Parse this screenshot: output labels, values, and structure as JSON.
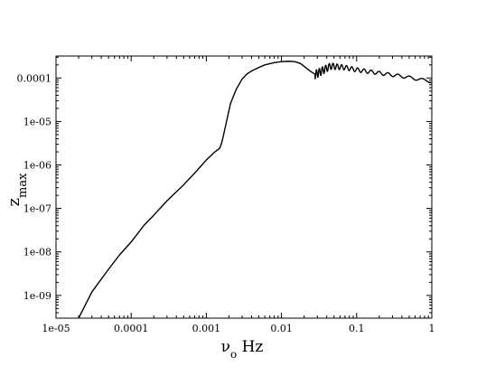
{
  "chart_data": {
    "type": "line",
    "x_scale": "log",
    "y_scale": "log",
    "xlim": [
      1e-05,
      1
    ],
    "ylim": [
      3e-10,
      0.00032
    ],
    "grid": false,
    "legend": "none",
    "x_ticks": [
      {
        "value": 1e-05,
        "label": "1e-05"
      },
      {
        "value": 0.0001,
        "label": "0.0001"
      },
      {
        "value": 0.001,
        "label": "0.001"
      },
      {
        "value": 0.01,
        "label": "0.01"
      },
      {
        "value": 0.1,
        "label": "0.1"
      },
      {
        "value": 1,
        "label": "1"
      }
    ],
    "y_ticks": [
      {
        "value": 1e-09,
        "label": "1e-09"
      },
      {
        "value": 1e-08,
        "label": "1e-08"
      },
      {
        "value": 1e-07,
        "label": "1e-07"
      },
      {
        "value": 1e-06,
        "label": "1e-06"
      },
      {
        "value": 1e-05,
        "label": "1e-05"
      },
      {
        "value": 0.0001,
        "label": "0.0001"
      }
    ],
    "xlabel": {
      "main": "ν",
      "sub": "o",
      "rest": " Hz"
    },
    "ylabel": {
      "main": "z",
      "sub": "max"
    },
    "series": [
      {
        "color": "#000000",
        "x": [
          2e-05,
          3e-05,
          5e-05,
          7e-05,
          0.0001,
          0.00015,
          0.0002,
          0.0003,
          0.0005,
          0.0007,
          0.001,
          0.0013,
          0.0015,
          0.0016,
          0.0017,
          0.0019,
          0.0021,
          0.0025,
          0.003,
          0.0035,
          0.004,
          0.005,
          0.006,
          0.008,
          0.01,
          0.0125,
          0.015,
          0.018,
          0.02,
          0.024,
          0.028
        ],
        "y": [
          3e-10,
          1.2e-09,
          4e-09,
          8.5e-09,
          1.7e-08,
          4.2e-08,
          7e-08,
          1.5e-07,
          3.5e-07,
          6.5e-07,
          1.3e-06,
          2e-06,
          2.4e-06,
          3.2e-06,
          5e-06,
          1.2e-05,
          2.6e-05,
          5.5e-05,
          9.5e-05,
          0.000125,
          0.000145,
          0.000175,
          0.0002,
          0.000225,
          0.000238,
          0.000243,
          0.000238,
          0.000215,
          0.000185,
          0.000145,
          0.000122
        ]
      }
    ],
    "oscillation": {
      "x_start": 0.028,
      "x_end": 1,
      "envelope_center": [
        [
          0.028,
          0.000122
        ],
        [
          0.045,
          0.00019
        ],
        [
          0.07,
          0.000175
        ],
        [
          0.1,
          0.000155
        ],
        [
          0.2,
          0.00013
        ],
        [
          0.4,
          0.00011
        ],
        [
          1,
          8.3e-05
        ]
      ],
      "relative_amplitude": [
        [
          0.028,
          0.22
        ],
        [
          0.07,
          0.12
        ],
        [
          0.2,
          0.09
        ],
        [
          1,
          0.07
        ]
      ],
      "cycles_per_decade": 28
    }
  }
}
